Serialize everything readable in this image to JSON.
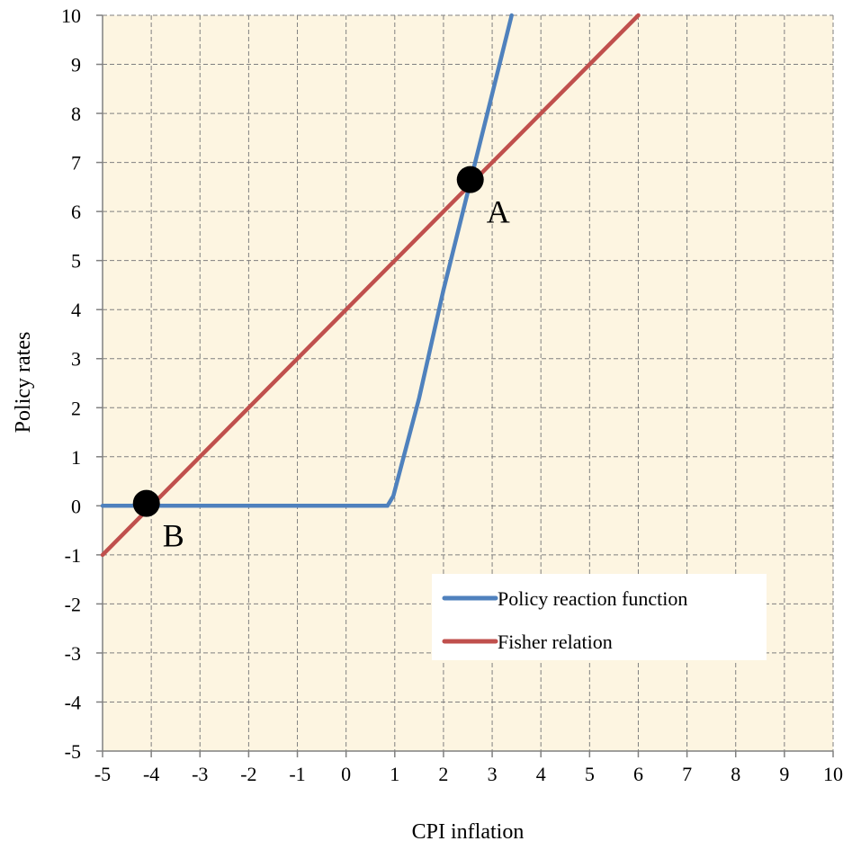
{
  "chart_data": {
    "type": "line",
    "title": "",
    "xlabel": "CPI inflation",
    "ylabel": "Policy rates",
    "xlim": [
      -5,
      10
    ],
    "ylim": [
      -5,
      10
    ],
    "x_ticks": [
      -5,
      -4,
      -3,
      -2,
      -1,
      0,
      1,
      2,
      3,
      4,
      5,
      6,
      7,
      8,
      9,
      10
    ],
    "y_ticks": [
      -5,
      -4,
      -3,
      -2,
      -1,
      0,
      1,
      2,
      3,
      4,
      5,
      6,
      7,
      8,
      9,
      10
    ],
    "grid": true,
    "legend_position": "bottom-right",
    "series": [
      {
        "name": "Policy reaction function",
        "color": "#4f81bd",
        "points": [
          [
            -5,
            0
          ],
          [
            0.85,
            0
          ],
          [
            0.97,
            0.2
          ],
          [
            1.5,
            2.2
          ],
          [
            2.0,
            4.4
          ],
          [
            2.5,
            6.4
          ],
          [
            3.0,
            8.4
          ],
          [
            3.4,
            10
          ]
        ]
      },
      {
        "name": "Fisher relation",
        "color": "#c0504d",
        "points": [
          [
            -5,
            -1
          ],
          [
            -4,
            0
          ],
          [
            0,
            4
          ],
          [
            0.5,
            4.5
          ],
          [
            1,
            5
          ],
          [
            4,
            8
          ],
          [
            6,
            10
          ]
        ]
      }
    ],
    "annotations": [
      {
        "label": "A",
        "x": 2.55,
        "y": 6.65
      },
      {
        "label": "B",
        "x": -4.1,
        "y": 0.05
      }
    ],
    "plot_background": "#fdf5e1",
    "grid_color": "#808080"
  }
}
